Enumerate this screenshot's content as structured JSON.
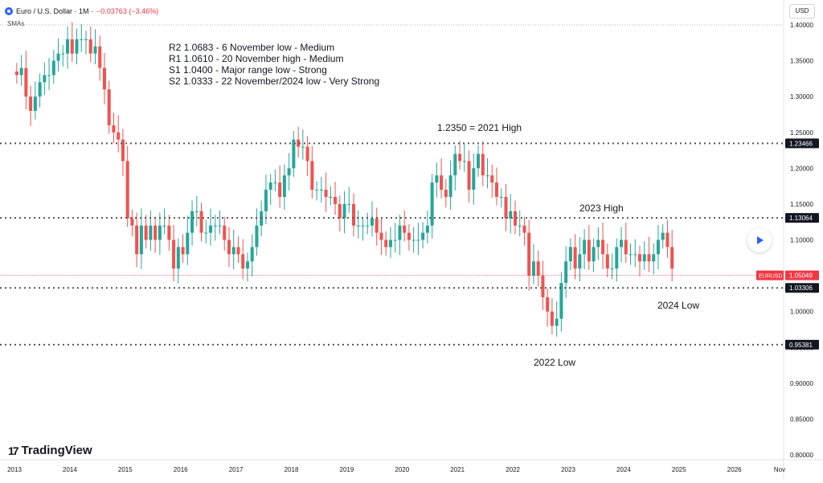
{
  "header": {
    "symbol": "Euro / U.S. Dollar · 1M ·",
    "change": "−0.03763 (−3.46%)",
    "indicator": "SMAs"
  },
  "currency_button": "USD",
  "branding": {
    "logo_mark": "17",
    "name": "TradingView"
  },
  "colors": {
    "up": "#26a69a",
    "down": "#ef5350",
    "level_line": "#555555",
    "last_price": "#f23645",
    "grid": "#f0f3fa"
  },
  "chart_data": {
    "type": "candlestick",
    "symbol_label": "EURUSD",
    "x_tick_labels": [
      "2013",
      "2014",
      "2015",
      "2016",
      "2017",
      "2018",
      "2019",
      "2020",
      "2021",
      "2022",
      "2023",
      "2024",
      "2025",
      "2026",
      "Nov"
    ],
    "y_tick_labels": [
      "1.40000",
      "1.35000",
      "1.30000",
      "1.25000",
      "1.20000",
      "1.15000",
      "1.10000",
      "1.05000",
      "1.00000",
      "0.95000",
      "0.90000",
      "0.85000",
      "0.80000"
    ],
    "ylim": [
      0.8,
      1.4
    ],
    "last_price": {
      "label": "1.05049",
      "value": 1.05049
    },
    "levels": [
      {
        "value": 1.23466,
        "label": "1.23466"
      },
      {
        "value": 1.13064,
        "label": "1.13064"
      },
      {
        "value": 1.03306,
        "label": "1.03306"
      },
      {
        "value": 0.95381,
        "label": "0.95381"
      }
    ],
    "notes": [
      "R2 1.0683 - 6 November low - Medium",
      "R1 1.0610 - 20 November high - Medium",
      "S1 1.0400 - Major range low - Strong",
      "S2 1.0333 - 22 November/2024 low - Very Strong"
    ],
    "annotations": [
      {
        "text": "1.2350 = 2021 High",
        "anchor_year": 2021,
        "near_value": 1.235
      },
      {
        "text": "2023 High",
        "anchor_year": 2023.6,
        "near_value": 1.13064
      },
      {
        "text": "2024 Low",
        "anchor_year": 2024.8,
        "near_value": 1.03306
      },
      {
        "text": "2022 Low",
        "anchor_year": 2022.7,
        "near_value": 0.95381
      }
    ],
    "candles_monthly_close": [
      1.33,
      1.34,
      1.3,
      1.28,
      1.3,
      1.32,
      1.33,
      1.33,
      1.35,
      1.36,
      1.36,
      1.38,
      1.36,
      1.38,
      1.38,
      1.38,
      1.36,
      1.37,
      1.34,
      1.31,
      1.26,
      1.25,
      1.24,
      1.21,
      1.13,
      1.12,
      1.08,
      1.12,
      1.1,
      1.12,
      1.1,
      1.12,
      1.12,
      1.1,
      1.06,
      1.09,
      1.08,
      1.11,
      1.14,
      1.14,
      1.11,
      1.11,
      1.12,
      1.12,
      1.12,
      1.1,
      1.08,
      1.09,
      1.08,
      1.06,
      1.07,
      1.09,
      1.12,
      1.14,
      1.17,
      1.18,
      1.18,
      1.16,
      1.19,
      1.2,
      1.24,
      1.23,
      1.23,
      1.21,
      1.17,
      1.17,
      1.17,
      1.16,
      1.16,
      1.15,
      1.13,
      1.15,
      1.15,
      1.12,
      1.12,
      1.12,
      1.12,
      1.13,
      1.11,
      1.1,
      1.09,
      1.1,
      1.1,
      1.12,
      1.11,
      1.1,
      1.1,
      1.1,
      1.11,
      1.12,
      1.18,
      1.19,
      1.17,
      1.16,
      1.19,
      1.22,
      1.21,
      1.21,
      1.17,
      1.2,
      1.22,
      1.19,
      1.19,
      1.18,
      1.16,
      1.16,
      1.13,
      1.14,
      1.12,
      1.12,
      1.11,
      1.05,
      1.07,
      1.05,
      1.02,
      1.0,
      0.98,
      0.99,
      1.04,
      1.07,
      1.09,
      1.06,
      1.08,
      1.1,
      1.07,
      1.09,
      1.1,
      1.08,
      1.06,
      1.06,
      1.09,
      1.1,
      1.08,
      1.08,
      1.08,
      1.07,
      1.08,
      1.07,
      1.08,
      1.1,
      1.11,
      1.09,
      1.06
    ]
  }
}
